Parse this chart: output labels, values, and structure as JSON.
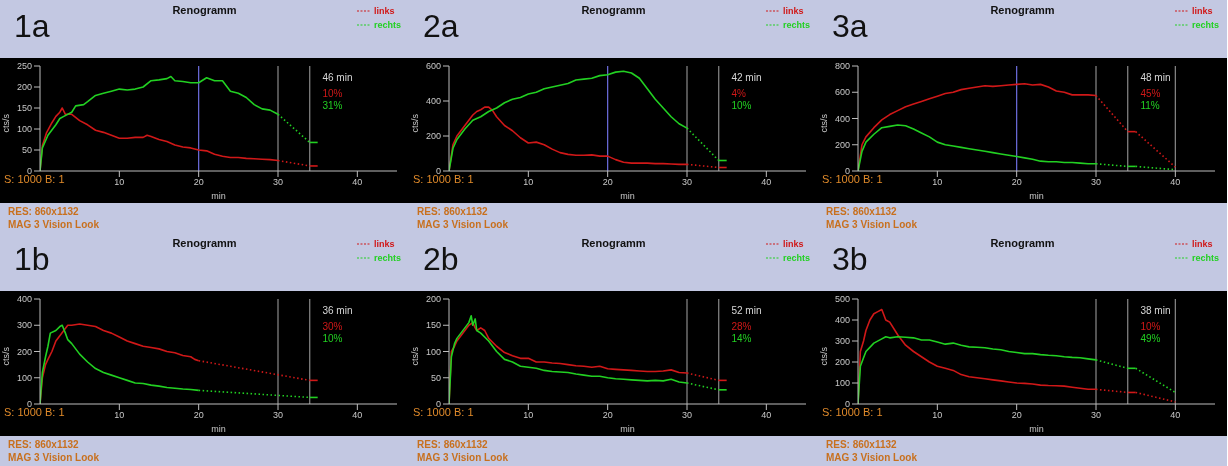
{
  "chart_data": [
    {
      "type": "line",
      "title": "Renogramm",
      "xlabel": "min",
      "ylabel": "cts/s",
      "legend": "top right",
      "xlim": [
        0,
        45
      ],
      "xticks": [
        10,
        20,
        30,
        40
      ],
      "ylim": [
        0,
        250
      ],
      "yticks": [
        0,
        50,
        100,
        150,
        200,
        250
      ],
      "annotations": [
        "1a",
        "46  min",
        "10%",
        "31%",
        "S: 1000 B: 1",
        "RES: 860x1132",
        "MAG 3 Vision Look"
      ],
      "ref_lines": [
        {
          "axis": "x",
          "value": 20,
          "color": "#6f6fe0"
        },
        {
          "axis": "x",
          "value": 30,
          "color": "#8a8a8a"
        },
        {
          "axis": "x",
          "value": 34,
          "color": "#8a8a8a"
        }
      ],
      "series": [
        {
          "name": "links",
          "color": "#d01818",
          "x": [
            0,
            0.3,
            0.8,
            1.5,
            2,
            2.5,
            2.8,
            3.2,
            4,
            5,
            6,
            7,
            8,
            9,
            10,
            11,
            12,
            13,
            13.5,
            14,
            15,
            16,
            17,
            18,
            19,
            20,
            21,
            22,
            23,
            24,
            25,
            26,
            27,
            28,
            29,
            30
          ],
          "values": [
            0,
            60,
            90,
            115,
            130,
            140,
            150,
            135,
            135,
            120,
            110,
            97,
            92,
            85,
            78,
            78,
            80,
            80,
            85,
            82,
            75,
            70,
            62,
            57,
            55,
            50,
            48,
            40,
            35,
            32,
            32,
            30,
            29,
            28,
            27,
            25
          ]
        },
        {
          "color": "#d01818",
          "line_style": "dotted",
          "x": [
            30,
            34
          ],
          "values": [
            25,
            12
          ]
        },
        {
          "color": "#d01818",
          "x": [
            34,
            35
          ],
          "values": [
            12,
            12
          ]
        },
        {
          "name": "rechts",
          "color": "#22d022",
          "x": [
            0,
            0.3,
            1,
            2,
            2.5,
            3,
            4,
            4.5,
            5.5,
            6,
            7,
            8,
            9,
            10,
            11,
            12,
            13,
            14,
            15,
            16,
            16.5,
            17,
            18,
            19,
            20,
            21,
            22,
            23,
            24,
            25,
            26,
            27,
            28,
            29,
            30
          ],
          "values": [
            0,
            55,
            85,
            110,
            125,
            130,
            140,
            155,
            158,
            165,
            180,
            185,
            190,
            195,
            193,
            195,
            200,
            215,
            217,
            220,
            225,
            215,
            213,
            210,
            210,
            222,
            215,
            215,
            190,
            185,
            175,
            158,
            148,
            145,
            135
          ]
        },
        {
          "color": "#22d022",
          "line_style": "dotted",
          "x": [
            30,
            34
          ],
          "values": [
            135,
            68
          ]
        },
        {
          "color": "#22d022",
          "x": [
            34,
            35
          ],
          "values": [
            68,
            68
          ]
        }
      ]
    },
    {
      "type": "line",
      "title": "Renogramm",
      "xlabel": "min",
      "ylabel": "cts/s",
      "legend": "top right",
      "xlim": [
        0,
        45
      ],
      "xticks": [
        10,
        20,
        30,
        40
      ],
      "ylim": [
        0,
        600
      ],
      "yticks": [
        0,
        200,
        400,
        600
      ],
      "annotations": [
        "2a",
        "42  min",
        "4%",
        "10%",
        "S: 1000 B: 1",
        "RES: 860x1132",
        "MAG 3 Vision Look"
      ],
      "ref_lines": [
        {
          "axis": "x",
          "value": 20,
          "color": "#6f6fe0"
        },
        {
          "axis": "x",
          "value": 30,
          "color": "#8a8a8a"
        },
        {
          "axis": "x",
          "value": 34,
          "color": "#8a8a8a"
        }
      ],
      "series": [
        {
          "name": "links",
          "color": "#d01818",
          "x": [
            0,
            0.5,
            1,
            2,
            3,
            3.5,
            4,
            4.5,
            5,
            5.5,
            6,
            7,
            8,
            9,
            10,
            11,
            12,
            13,
            14,
            15,
            16,
            17,
            18,
            19,
            20,
            21,
            22,
            23,
            24,
            25,
            26,
            27,
            28,
            29,
            30
          ],
          "values": [
            0,
            150,
            200,
            260,
            320,
            340,
            350,
            365,
            365,
            345,
            310,
            260,
            230,
            190,
            160,
            165,
            150,
            125,
            105,
            95,
            90,
            90,
            92,
            85,
            85,
            65,
            50,
            45,
            45,
            45,
            42,
            42,
            40,
            38,
            38
          ]
        },
        {
          "color": "#d01818",
          "line_style": "dotted",
          "x": [
            30,
            34
          ],
          "values": [
            38,
            20
          ]
        },
        {
          "color": "#d01818",
          "x": [
            34,
            35
          ],
          "values": [
            20,
            20
          ]
        },
        {
          "name": "rechts",
          "color": "#22d022",
          "x": [
            0,
            0.5,
            1,
            2,
            3,
            4,
            5,
            6,
            7,
            8,
            9,
            10,
            11,
            12,
            13,
            14,
            15,
            16,
            17,
            18,
            19,
            20,
            21,
            22,
            23,
            24,
            25,
            26,
            27,
            28,
            29,
            30
          ],
          "values": [
            0,
            130,
            180,
            240,
            290,
            310,
            340,
            360,
            390,
            410,
            420,
            440,
            450,
            470,
            480,
            490,
            500,
            520,
            525,
            530,
            545,
            550,
            565,
            570,
            560,
            530,
            470,
            410,
            360,
            310,
            270,
            245
          ]
        },
        {
          "color": "#22d022",
          "line_style": "dotted",
          "x": [
            30,
            34
          ],
          "values": [
            245,
            60
          ]
        },
        {
          "color": "#22d022",
          "x": [
            34,
            35
          ],
          "values": [
            60,
            60
          ]
        }
      ]
    },
    {
      "type": "line",
      "title": "Renogramm",
      "xlabel": "min",
      "ylabel": "cts/s",
      "legend": "top right",
      "xlim": [
        0,
        45
      ],
      "xticks": [
        10,
        20,
        30,
        40
      ],
      "ylim": [
        0,
        800
      ],
      "yticks": [
        0,
        200,
        400,
        600,
        800
      ],
      "annotations": [
        "3a",
        "48  min",
        "45%",
        "11%",
        "S: 1000 B: 1",
        "RES: 860x1132",
        "MAG 3 Vision Look"
      ],
      "ref_lines": [
        {
          "axis": "x",
          "value": 20,
          "color": "#6f6fe0"
        },
        {
          "axis": "x",
          "value": 30,
          "color": "#8a8a8a"
        },
        {
          "axis": "x",
          "value": 34,
          "color": "#8a8a8a"
        },
        {
          "axis": "x",
          "value": 40,
          "color": "#8a8a8a"
        }
      ],
      "series": [
        {
          "name": "links",
          "color": "#d01818",
          "x": [
            0,
            0.5,
            1,
            2,
            3,
            4,
            5,
            6,
            7,
            8,
            9,
            10,
            11,
            12,
            13,
            14,
            15,
            16,
            17,
            18,
            19,
            20,
            21,
            22,
            23,
            24,
            25,
            26,
            27,
            28,
            29,
            30
          ],
          "values": [
            0,
            200,
            260,
            330,
            390,
            430,
            460,
            490,
            510,
            530,
            550,
            570,
            590,
            600,
            620,
            630,
            640,
            650,
            645,
            650,
            655,
            660,
            665,
            655,
            660,
            640,
            610,
            600,
            580,
            580,
            580,
            575
          ]
        },
        {
          "color": "#d01818",
          "line_style": "dotted",
          "x": [
            30,
            34
          ],
          "values": [
            575,
            300
          ]
        },
        {
          "color": "#d01818",
          "x": [
            34,
            35
          ],
          "values": [
            300,
            300
          ]
        },
        {
          "color": "#d01818",
          "line_style": "dotted",
          "x": [
            35,
            40
          ],
          "values": [
            300,
            30
          ]
        },
        {
          "name": "rechts",
          "color": "#22d022",
          "x": [
            0,
            0.5,
            1,
            2,
            3,
            4,
            5,
            6,
            7,
            8,
            9,
            10,
            11,
            12,
            13,
            14,
            15,
            16,
            17,
            18,
            19,
            20,
            21,
            22,
            23,
            24,
            25,
            26,
            27,
            28,
            29,
            30
          ],
          "values": [
            0,
            150,
            220,
            280,
            330,
            340,
            350,
            345,
            320,
            290,
            260,
            220,
            200,
            190,
            180,
            170,
            160,
            150,
            140,
            130,
            120,
            110,
            100,
            90,
            75,
            70,
            70,
            65,
            65,
            60,
            55,
            55
          ]
        },
        {
          "color": "#22d022",
          "line_style": "dotted",
          "x": [
            30,
            34
          ],
          "values": [
            55,
            35
          ]
        },
        {
          "color": "#22d022",
          "x": [
            34,
            35
          ],
          "values": [
            35,
            35
          ]
        },
        {
          "color": "#22d022",
          "line_style": "dotted",
          "x": [
            35,
            40
          ],
          "values": [
            35,
            10
          ]
        }
      ]
    },
    {
      "type": "line",
      "title": "Renogramm",
      "xlabel": "min",
      "ylabel": "cts/s",
      "legend": "top right",
      "xlim": [
        0,
        45
      ],
      "xticks": [
        10,
        20,
        30,
        40
      ],
      "ylim": [
        0,
        400
      ],
      "yticks": [
        0,
        100,
        200,
        300,
        400
      ],
      "annotations": [
        "1b",
        "36  min",
        "30%",
        "10%",
        "S: 1000 B: 1",
        "RES: 860x1132",
        "MAG 3 Vision Look"
      ],
      "ref_lines": [
        {
          "axis": "x",
          "value": 30,
          "color": "#8a8a8a"
        },
        {
          "axis": "x",
          "value": 34,
          "color": "#8a8a8a"
        }
      ],
      "series": [
        {
          "name": "links",
          "color": "#d01818",
          "x": [
            0,
            0.3,
            0.7,
            1,
            1.5,
            2,
            2.5,
            3,
            3.5,
            4,
            5,
            6,
            7,
            8,
            9,
            10,
            11,
            12,
            13,
            14,
            15,
            16,
            17,
            18,
            19,
            19.5,
            20
          ],
          "values": [
            0,
            100,
            150,
            170,
            200,
            240,
            260,
            280,
            300,
            300,
            305,
            300,
            295,
            280,
            270,
            255,
            240,
            230,
            220,
            215,
            210,
            200,
            195,
            185,
            180,
            170,
            165
          ]
        },
        {
          "color": "#d01818",
          "line_style": "dotted",
          "x": [
            20,
            34
          ],
          "values": [
            165,
            90
          ]
        },
        {
          "color": "#d01818",
          "x": [
            34,
            35
          ],
          "values": [
            90,
            90
          ]
        },
        {
          "name": "rechts",
          "color": "#22d022",
          "x": [
            0,
            0.3,
            0.7,
            1,
            1.3,
            2,
            2.5,
            2.8,
            3.2,
            3.5,
            4,
            5,
            6,
            7,
            8,
            9,
            10,
            11,
            12,
            13,
            14,
            15,
            16,
            17,
            18,
            19,
            20
          ],
          "values": [
            0,
            120,
            180,
            220,
            270,
            280,
            295,
            300,
            270,
            245,
            230,
            190,
            160,
            135,
            120,
            110,
            100,
            90,
            80,
            78,
            72,
            68,
            63,
            60,
            57,
            55,
            52
          ]
        },
        {
          "color": "#22d022",
          "line_style": "dotted",
          "x": [
            20,
            34
          ],
          "values": [
            52,
            25
          ]
        },
        {
          "color": "#22d022",
          "x": [
            34,
            35
          ],
          "values": [
            25,
            25
          ]
        }
      ]
    },
    {
      "type": "line",
      "title": "Renogramm",
      "xlabel": "min",
      "ylabel": "cts/s",
      "legend": "top right",
      "xlim": [
        0,
        45
      ],
      "xticks": [
        10,
        20,
        30,
        40
      ],
      "ylim": [
        0,
        200
      ],
      "yticks": [
        0,
        50,
        100,
        150,
        200
      ],
      "annotations": [
        "2b",
        "52  min",
        "28%",
        "14%",
        "S: 1000 B: 1",
        "RES: 860x1132",
        "MAG 3 Vision Look"
      ],
      "ref_lines": [
        {
          "axis": "x",
          "value": 30,
          "color": "#8a8a8a"
        },
        {
          "axis": "x",
          "value": 34,
          "color": "#8a8a8a"
        }
      ],
      "series": [
        {
          "name": "links",
          "color": "#d01818",
          "x": [
            0,
            0.3,
            0.7,
            1,
            1.5,
            2,
            2.5,
            3,
            3.3,
            3.5,
            4,
            4.5,
            5,
            6,
            7,
            8,
            9,
            10,
            11,
            12,
            13,
            14,
            15,
            16,
            17,
            18,
            19,
            20,
            21,
            22,
            23,
            24,
            25,
            26,
            27,
            28,
            29,
            30
          ],
          "values": [
            0,
            100,
            110,
            120,
            130,
            140,
            150,
            155,
            145,
            140,
            145,
            140,
            125,
            110,
            98,
            92,
            87,
            87,
            80,
            80,
            78,
            77,
            75,
            73,
            72,
            70,
            72,
            67,
            66,
            65,
            64,
            63,
            62,
            62,
            63,
            65,
            60,
            59
          ]
        },
        {
          "color": "#d01818",
          "line_style": "dotted",
          "x": [
            30,
            34
          ],
          "values": [
            59,
            45
          ]
        },
        {
          "color": "#d01818",
          "x": [
            34,
            35
          ],
          "values": [
            45,
            45
          ]
        },
        {
          "name": "rechts",
          "color": "#22d022",
          "x": [
            0,
            0.3,
            0.7,
            1,
            1.5,
            2,
            2.5,
            2.8,
            3,
            3.3,
            3.5,
            4,
            5,
            6,
            7,
            8,
            9,
            10,
            11,
            12,
            13,
            14,
            15,
            16,
            17,
            18,
            19,
            20,
            21,
            22,
            23,
            24,
            25,
            26,
            27,
            28,
            29,
            30
          ],
          "values": [
            0,
            90,
            115,
            125,
            135,
            145,
            155,
            168,
            150,
            162,
            140,
            135,
            120,
            100,
            85,
            80,
            72,
            70,
            68,
            64,
            62,
            61,
            60,
            57,
            55,
            53,
            53,
            50,
            48,
            47,
            46,
            45,
            44,
            45,
            44,
            47,
            42,
            40
          ]
        },
        {
          "color": "#22d022",
          "line_style": "dotted",
          "x": [
            30,
            34
          ],
          "values": [
            40,
            27
          ]
        },
        {
          "color": "#22d022",
          "x": [
            34,
            35
          ],
          "values": [
            27,
            27
          ]
        }
      ]
    },
    {
      "type": "line",
      "title": "Renogramm",
      "xlabel": "min",
      "ylabel": "cts/s",
      "legend": "top right",
      "xlim": [
        0,
        45
      ],
      "xticks": [
        10,
        20,
        30,
        40
      ],
      "ylim": [
        0,
        500
      ],
      "yticks": [
        0,
        100,
        200,
        300,
        400,
        500
      ],
      "annotations": [
        "3b",
        "38  min",
        "10%",
        "49%",
        "S: 1000 B: 1",
        "RES: 860x1132",
        "MAG 3 Vision Look"
      ],
      "ref_lines": [
        {
          "axis": "x",
          "value": 30,
          "color": "#8a8a8a"
        },
        {
          "axis": "x",
          "value": 34,
          "color": "#8a8a8a"
        },
        {
          "axis": "x",
          "value": 40,
          "color": "#8a8a8a"
        }
      ],
      "series": [
        {
          "name": "links",
          "color": "#d01818",
          "x": [
            0,
            0.3,
            0.7,
            1,
            1.5,
            2,
            2.5,
            3,
            3.3,
            3.5,
            4,
            5,
            6,
            7,
            8,
            9,
            10,
            11,
            12,
            13,
            14,
            15,
            16,
            17,
            18,
            19,
            20,
            21,
            22,
            23,
            24,
            25,
            26,
            27,
            28,
            29,
            30
          ],
          "values": [
            0,
            250,
            300,
            350,
            400,
            430,
            440,
            450,
            420,
            400,
            390,
            330,
            280,
            250,
            225,
            200,
            180,
            170,
            160,
            140,
            130,
            125,
            120,
            115,
            110,
            105,
            100,
            98,
            95,
            90,
            88,
            87,
            85,
            80,
            75,
            70,
            70
          ]
        },
        {
          "color": "#d01818",
          "line_style": "dotted",
          "x": [
            30,
            34
          ],
          "values": [
            70,
            55
          ]
        },
        {
          "color": "#d01818",
          "x": [
            34,
            35
          ],
          "values": [
            55,
            55
          ]
        },
        {
          "color": "#d01818",
          "line_style": "dotted",
          "x": [
            35,
            40
          ],
          "values": [
            55,
            10
          ]
        },
        {
          "name": "rechts",
          "color": "#22d022",
          "x": [
            0,
            0.3,
            0.7,
            1,
            2,
            3,
            3.5,
            4,
            5,
            6,
            7,
            8,
            9,
            10,
            11,
            12,
            13,
            14,
            15,
            16,
            17,
            18,
            19,
            20,
            21,
            22,
            23,
            24,
            25,
            26,
            27,
            28,
            29,
            30
          ],
          "values": [
            0,
            180,
            220,
            250,
            290,
            310,
            320,
            315,
            320,
            318,
            315,
            305,
            305,
            295,
            285,
            290,
            280,
            272,
            270,
            268,
            262,
            258,
            250,
            245,
            240,
            240,
            235,
            232,
            230,
            225,
            222,
            220,
            215,
            210
          ]
        },
        {
          "color": "#22d022",
          "line_style": "dotted",
          "x": [
            30,
            34
          ],
          "values": [
            210,
            170
          ]
        },
        {
          "color": "#22d022",
          "x": [
            34,
            35
          ],
          "values": [
            170,
            170
          ]
        },
        {
          "color": "#22d022",
          "line_style": "dotted",
          "x": [
            35,
            40
          ],
          "values": [
            170,
            55
          ]
        }
      ]
    }
  ]
}
